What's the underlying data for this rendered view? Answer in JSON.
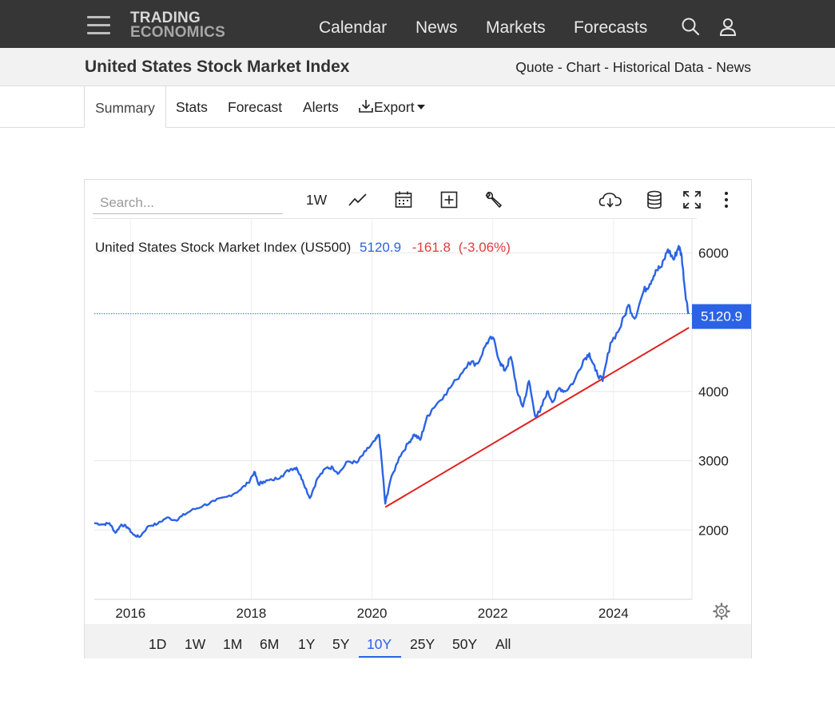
{
  "nav": {
    "logo_line1": "TRADING",
    "logo_line2": "ECONOMICS",
    "links": [
      "Calendar",
      "News",
      "Markets",
      "Forecasts"
    ]
  },
  "header": {
    "title": "United States Stock Market Index",
    "crumbs": [
      "Quote",
      "Chart",
      "Historical Data",
      "News"
    ],
    "separator": " - "
  },
  "tabs": {
    "summary": "Summary",
    "stats": "Stats",
    "forecast": "Forecast",
    "alerts": "Alerts",
    "export": "Export"
  },
  "toolbar": {
    "search_placeholder": "Search...",
    "interval": "1W"
  },
  "ranges": [
    "1D",
    "1W",
    "1M",
    "6M",
    "1Y",
    "5Y",
    "10Y",
    "25Y",
    "50Y",
    "All"
  ],
  "active_range": "10Y",
  "colors": {
    "topbar": "#363636",
    "series": "#2b63e4",
    "trendline": "#e0201f",
    "negative": "#e03c3c",
    "last_price_bg": "#2b63e4"
  },
  "chart_data": {
    "type": "line",
    "legend_name": "United States Stock Market Index (US500)",
    "last_value": "5120.9",
    "change": "-161.8",
    "change_pct": "(-3.06%)",
    "last_price_label": "5120.9",
    "ylim": [
      1000,
      6500
    ],
    "y_ticks": [
      2000,
      3000,
      4000,
      6000
    ],
    "y_tick_labels": [
      "2000",
      "3000",
      "4000",
      "6000"
    ],
    "xlim": [
      2015.4,
      2025.3
    ],
    "x_ticks": [
      2016,
      2018,
      2020,
      2022,
      2024
    ],
    "x_tick_labels": [
      "2016",
      "2018",
      "2020",
      "2022",
      "2024"
    ],
    "grid": true,
    "series": [
      {
        "x": [
          2015.4,
          2015.55,
          2015.65,
          2015.75,
          2015.85,
          2015.95,
          2016.05,
          2016.15,
          2016.3,
          2016.45,
          2016.6,
          2016.75,
          2016.85,
          2017.0,
          2017.2,
          2017.4,
          2017.6,
          2017.8,
          2017.95,
          2018.05,
          2018.12,
          2018.2,
          2018.35,
          2018.5,
          2018.65,
          2018.75,
          2018.85,
          2018.97,
          2019.1,
          2019.25,
          2019.35,
          2019.45,
          2019.6,
          2019.75,
          2019.9,
          2020.05,
          2020.12,
          2020.17,
          2020.22,
          2020.3,
          2020.45,
          2020.6,
          2020.7,
          2020.8,
          2020.9,
          2021.0,
          2021.2,
          2021.4,
          2021.6,
          2021.75,
          2021.9,
          2022.0,
          2022.12,
          2022.2,
          2022.3,
          2022.42,
          2022.5,
          2022.6,
          2022.7,
          2022.78,
          2022.9,
          2023.0,
          2023.1,
          2023.2,
          2023.35,
          2023.5,
          2023.6,
          2023.7,
          2023.82,
          2023.95,
          2024.1,
          2024.25,
          2024.35,
          2024.5,
          2024.6,
          2024.7,
          2024.8,
          2024.9,
          2025.0,
          2025.08,
          2025.13,
          2025.18,
          2025.24
        ],
        "y": [
          2100,
          2080,
          2100,
          1960,
          2080,
          2040,
          1930,
          1900,
          2060,
          2090,
          2180,
          2140,
          2200,
          2280,
          2350,
          2420,
          2480,
          2570,
          2680,
          2840,
          2660,
          2700,
          2720,
          2780,
          2880,
          2900,
          2720,
          2460,
          2750,
          2900,
          2900,
          2820,
          2990,
          2970,
          3140,
          3290,
          3370,
          2900,
          2380,
          2700,
          3050,
          3250,
          3380,
          3300,
          3600,
          3750,
          3950,
          4170,
          4420,
          4400,
          4700,
          4780,
          4420,
          4300,
          4500,
          3950,
          3780,
          4150,
          3650,
          3700,
          4000,
          3850,
          4050,
          4000,
          4150,
          4450,
          4550,
          4300,
          4150,
          4700,
          4900,
          5250,
          5050,
          5450,
          5550,
          5750,
          5800,
          6050,
          5900,
          6100,
          5950,
          5500,
          5120
        ]
      }
    ],
    "trendline": {
      "x": [
        2020.22,
        2025.25
      ],
      "y": [
        2330,
        4920
      ]
    }
  }
}
